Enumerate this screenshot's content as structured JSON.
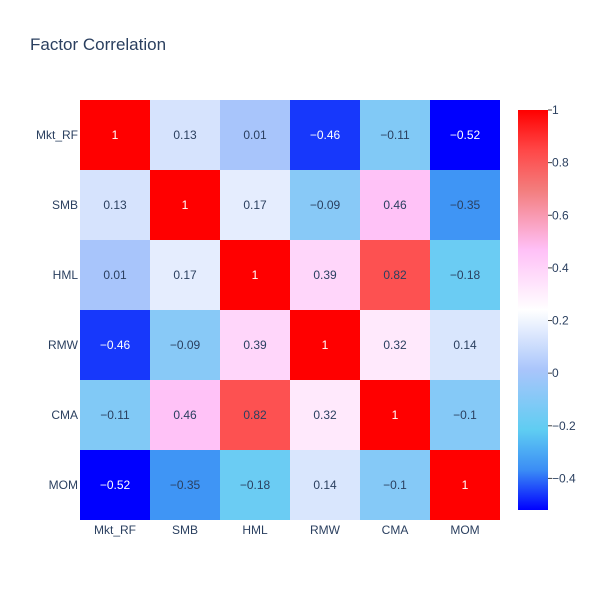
{
  "chart_data": {
    "type": "heatmap",
    "title": "Factor Correlation",
    "x_categories": [
      "Mkt_RF",
      "SMB",
      "HML",
      "RMW",
      "CMA",
      "MOM"
    ],
    "y_categories": [
      "Mkt_RF",
      "SMB",
      "HML",
      "RMW",
      "CMA",
      "MOM"
    ],
    "z": [
      [
        1,
        0.13,
        0.01,
        -0.46,
        -0.11,
        -0.52
      ],
      [
        0.13,
        1,
        0.17,
        -0.09,
        0.46,
        -0.35
      ],
      [
        0.01,
        0.17,
        1,
        0.39,
        0.82,
        -0.18
      ],
      [
        -0.46,
        -0.09,
        0.39,
        1,
        0.32,
        0.14
      ],
      [
        -0.11,
        0.46,
        0.82,
        0.32,
        1,
        -0.1
      ],
      [
        -0.52,
        -0.35,
        -0.18,
        0.14,
        -0.1,
        1
      ]
    ],
    "cell_labels": [
      [
        "1",
        "0.13",
        "0.01",
        "−0.46",
        "−0.11",
        "−0.52"
      ],
      [
        "0.13",
        "1",
        "0.17",
        "−0.09",
        "0.46",
        "−0.35"
      ],
      [
        "0.01",
        "0.17",
        "1",
        "0.39",
        "0.82",
        "−0.18"
      ],
      [
        "−0.46",
        "−0.09",
        "0.39",
        "1",
        "0.32",
        "0.14"
      ],
      [
        "−0.11",
        "0.46",
        "0.82",
        "0.32",
        "1",
        "−0.1"
      ],
      [
        "−0.52",
        "−0.35",
        "−0.18",
        "0.14",
        "−0.1",
        "1"
      ]
    ],
    "zrange": [
      -0.52,
      1
    ],
    "colorscale": [
      [
        0,
        "#0000ff"
      ],
      [
        0.1,
        "#3b8df5"
      ],
      [
        0.2,
        "#5fcdf2"
      ],
      [
        0.35,
        "#a9c5fb"
      ],
      [
        0.5,
        "#ffffff"
      ],
      [
        0.65,
        "#ffc0f7"
      ],
      [
        0.8,
        "#f37d7d"
      ],
      [
        0.9,
        "#ff4747"
      ],
      [
        1,
        "#ff0000"
      ]
    ],
    "colorbar_ticks": [
      1,
      0.8,
      0.6,
      0.4,
      0.2,
      0,
      -0.2,
      -0.4
    ],
    "colorbar_tick_labels": [
      "1",
      "0.8",
      "0.6",
      "0.4",
      "0.2",
      "0",
      "−0.2",
      "−0.4"
    ],
    "legend": "colorbar-right",
    "grid": false
  }
}
